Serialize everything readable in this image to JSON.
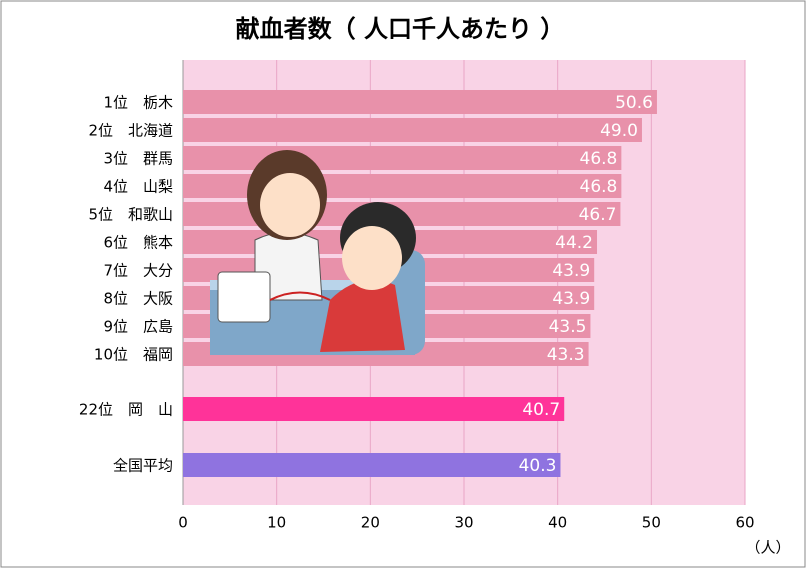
{
  "chart_data": {
    "type": "barh",
    "title": "献血者数（ 人口千人あたり ）",
    "categories": [
      "1位　栃木",
      "2位　北海道",
      "3位　群馬",
      "4位　山梨",
      "5位　和歌山",
      "6位　熊本",
      "7位　大分",
      "8位　大阪",
      "9位　広島",
      "10位　福岡",
      "22位　岡　山",
      "全国平均"
    ],
    "values": [
      50.6,
      49,
      46.8,
      46.8,
      46.7,
      44.2,
      43.9,
      43.9,
      43.5,
      43.3,
      40.7,
      40.3
    ],
    "value_labels": [
      "50.6",
      "49.0",
      "46.8",
      "46.8",
      "46.7",
      "44.2",
      "43.9",
      "43.9",
      "43.5",
      "43.3",
      "40.7",
      "40.3"
    ],
    "colors": [
      "#e891aa",
      "#e891aa",
      "#e891aa",
      "#e891aa",
      "#e891aa",
      "#e891aa",
      "#e891aa",
      "#e891aa",
      "#e891aa",
      "#e891aa",
      "#ff3399",
      "#8f73e0"
    ],
    "xlim": [
      0,
      60
    ],
    "xticks": [
      0,
      10,
      20,
      30,
      40,
      50,
      60
    ],
    "x_unit": "（人）",
    "grid": true
  }
}
